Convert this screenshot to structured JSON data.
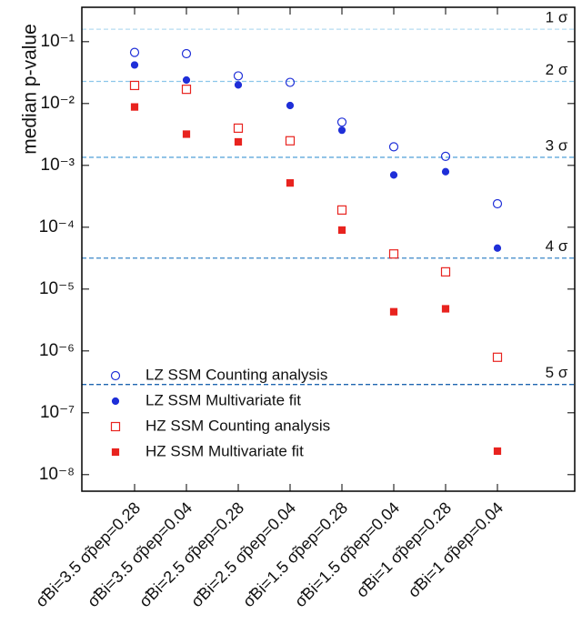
{
  "chart_data": {
    "type": "scatter",
    "ylabel": "median p-value",
    "log_y": true,
    "categories": [
      "σ̃Bi=3.5 σ̃pep=0.28",
      "σ̃Bi=3.5 σ̃pep=0.04",
      "σ̃Bi=2.5 σ̃pep=0.28",
      "σ̃Bi=2.5 σ̃pep=0.04",
      "σ̃Bi=1.5 σ̃pep=0.28",
      "σ̃Bi=1.5 σ̃pep=0.04",
      "σ̃Bi=1 σ̃pep=0.28",
      "σ̃Bi=1 σ̃pep=0.04"
    ],
    "ylim": [
      5.4e-09,
      0.36
    ],
    "yticks": [
      {
        "value": 1e-08,
        "label": "10⁻⁸"
      },
      {
        "value": 1e-07,
        "label": "10⁻⁷"
      },
      {
        "value": 1e-06,
        "label": "10⁻⁶"
      },
      {
        "value": 1e-05,
        "label": "10⁻⁵"
      },
      {
        "value": 0.0001,
        "label": "10⁻⁴"
      },
      {
        "value": 0.001,
        "label": "10⁻³"
      },
      {
        "value": 0.01,
        "label": "10⁻²"
      },
      {
        "value": 0.1,
        "label": "10⁻¹"
      }
    ],
    "thresholds": [
      {
        "label": "1 σ",
        "value": 0.159,
        "color": "#b5dcf2"
      },
      {
        "label": "2 σ",
        "value": 0.0228,
        "color": "#8cc6ea"
      },
      {
        "label": "3 σ",
        "value": 0.00135,
        "color": "#5fa8dc"
      },
      {
        "label": "4 σ",
        "value": 3.17e-05,
        "color": "#3a86c8"
      },
      {
        "label": "5 σ",
        "value": 2.87e-07,
        "color": "#1f66b0"
      }
    ],
    "legend": "lower left",
    "series": [
      {
        "name": "LZ SSM Counting analysis",
        "color": "#1f2fd8",
        "marker": "circle-open",
        "values": [
          0.067,
          0.064,
          0.028,
          0.022,
          0.005,
          0.002,
          0.0014,
          0.00024
        ]
      },
      {
        "name": "LZ SSM Multivariate fit",
        "color": "#1f2fd8",
        "marker": "circle",
        "values": [
          0.042,
          0.024,
          0.02,
          0.0093,
          0.0037,
          0.0007,
          0.00079,
          4.6e-05
        ]
      },
      {
        "name": "HZ SSM Counting analysis",
        "color": "#e8231f",
        "marker": "square-open",
        "values": [
          0.0196,
          0.017,
          0.004,
          0.0025,
          0.00019,
          3.7e-05,
          1.9e-05,
          7.9e-07
        ]
      },
      {
        "name": "HZ SSM Multivariate fit",
        "color": "#e8231f",
        "marker": "square",
        "values": [
          0.0088,
          0.0032,
          0.0024,
          0.00052,
          9e-05,
          4.3e-06,
          4.8e-06,
          2.4e-08
        ]
      }
    ]
  }
}
